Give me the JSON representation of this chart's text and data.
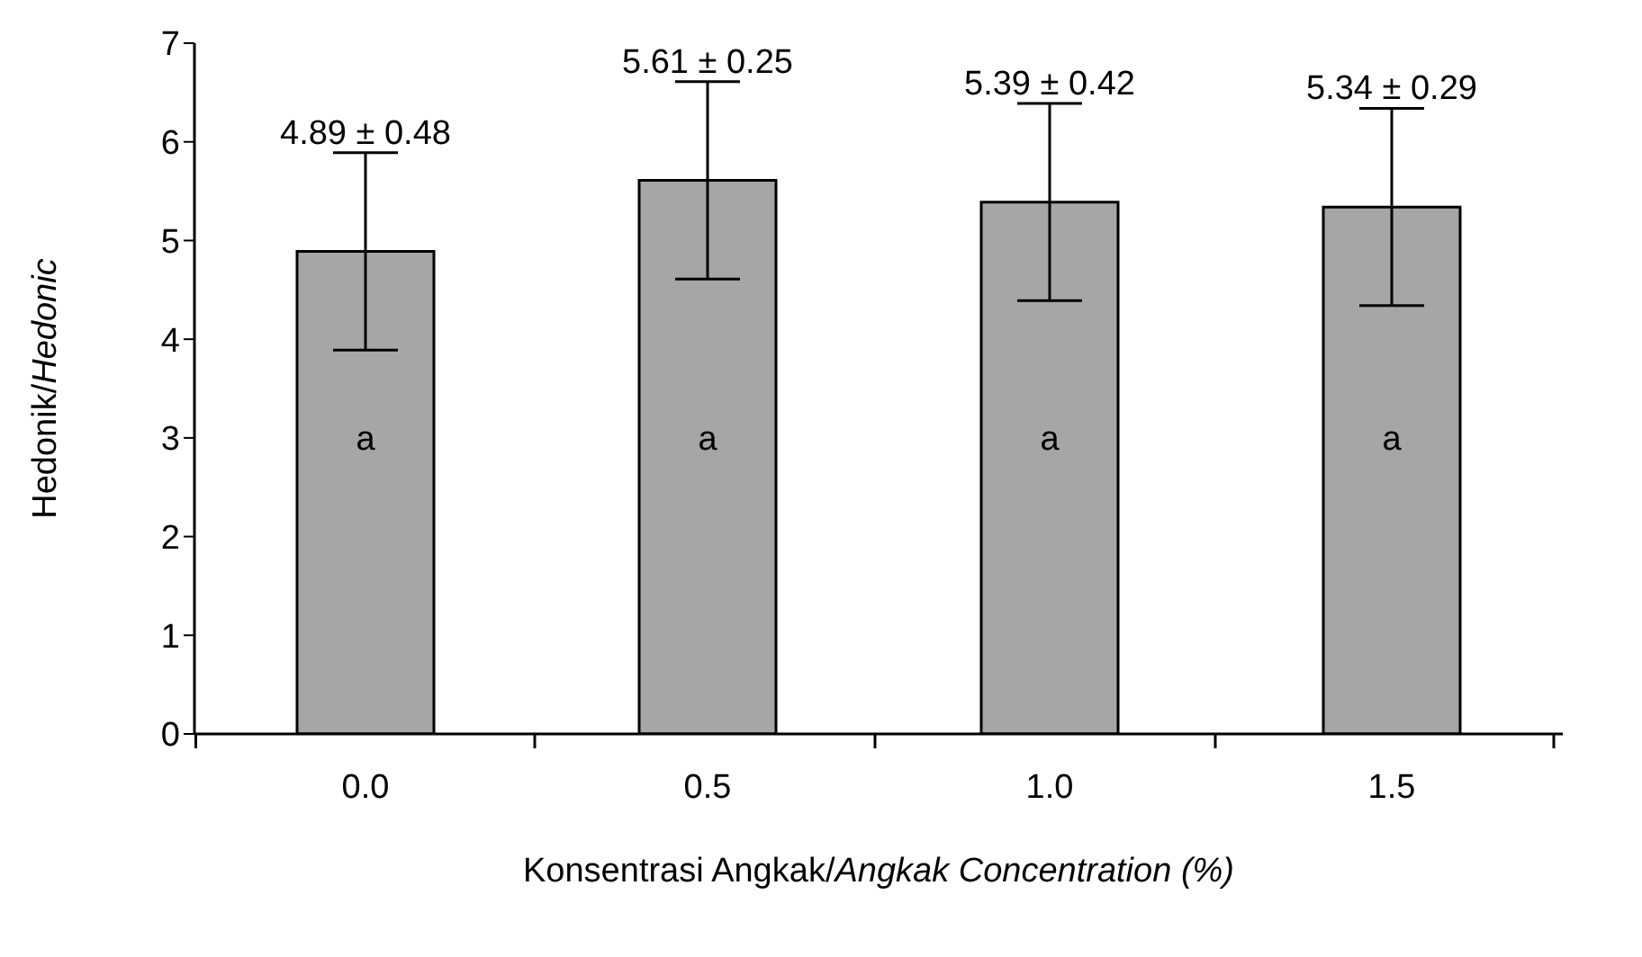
{
  "chart_data": {
    "type": "bar",
    "xlabel": "Konsentrasi Angkak/Angkak Concentration (%)",
    "ylabel": "Hedonik/Hedonic",
    "categories": [
      "0.0",
      "0.5",
      "1.0",
      "1.5"
    ],
    "values": [
      4.89,
      5.61,
      5.39,
      5.34
    ],
    "errors": [
      1.0,
      1.0,
      1.0,
      1.0
    ],
    "value_labels": [
      "4.89 ± 0.48",
      "5.61 ± 0.25",
      "5.39 ± 0.42",
      "5.34 ± 0.29"
    ],
    "color": "#a6a6a6",
    "ylim": [
      0,
      7
    ],
    "yticks": [
      0,
      1,
      2,
      3,
      4,
      5,
      6,
      7
    ],
    "grid": false,
    "legend": false,
    "annotations": [
      "a",
      "a",
      "a",
      "a"
    ]
  }
}
